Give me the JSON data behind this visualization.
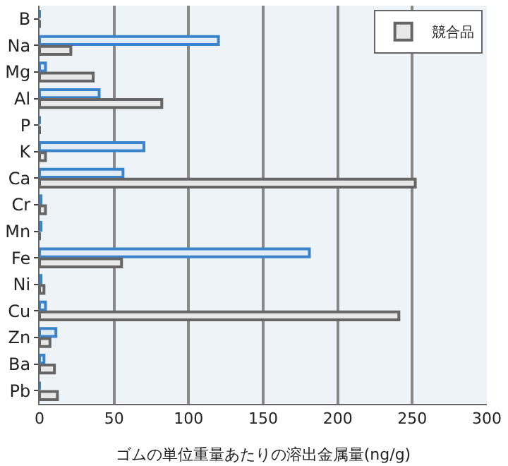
{
  "chart_data": {
    "type": "bar",
    "orientation": "horizontal",
    "xlabel": "ゴムの単位重量あたりの溶出金属量(ng/g)",
    "categories": [
      "B",
      "Na",
      "Mg",
      "Al",
      "P",
      "K",
      "Ca",
      "Cr",
      "Mn",
      "Fe",
      "Ni",
      "Cu",
      "Zn",
      "Ba",
      "Pb"
    ],
    "series": [
      {
        "color": "#3a84cc",
        "values": [
          0,
          120,
          4,
          40,
          0,
          70,
          56,
          1,
          1,
          181,
          1,
          4,
          11,
          3,
          0
        ]
      },
      {
        "name": "競合品",
        "color": "#666666",
        "values": [
          0,
          21,
          36,
          82,
          0,
          4,
          252,
          4,
          0,
          55,
          3,
          241,
          7,
          10,
          12
        ]
      }
    ],
    "xlim": [
      0,
      300
    ],
    "xticks": [
      0,
      50,
      100,
      150,
      200,
      250,
      300
    ],
    "grid": "x",
    "legend": "top right"
  }
}
